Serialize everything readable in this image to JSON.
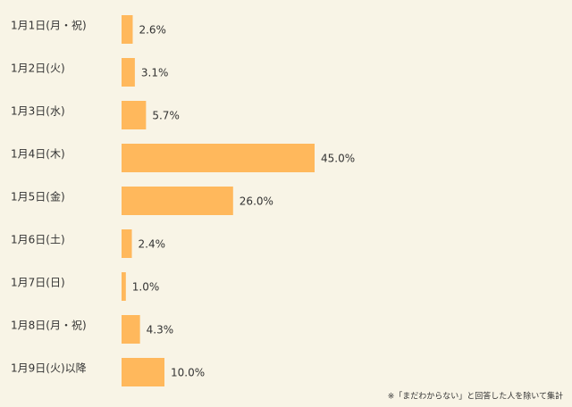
{
  "chart_data": {
    "type": "bar",
    "orientation": "horizontal",
    "categories": [
      "1月1日(月・祝)",
      "1月2日(火)",
      "1月3日(水)",
      "1月4日(木)",
      "1月5日(金)",
      "1月6日(土)",
      "1月7日(日)",
      "1月8日(月・祝)",
      "1月9日(火)以降"
    ],
    "values": [
      2.6,
      3.1,
      5.7,
      45.0,
      26.0,
      2.4,
      1.0,
      4.3,
      10.0
    ],
    "value_labels": [
      "2.6%",
      "3.1%",
      "5.7%",
      "45.0%",
      "26.0%",
      "2.4%",
      "1.0%",
      "4.3%",
      "10.0%"
    ],
    "color": "#ffb85c",
    "note": "※「まだわからない」と回答した人を除いて集計"
  }
}
